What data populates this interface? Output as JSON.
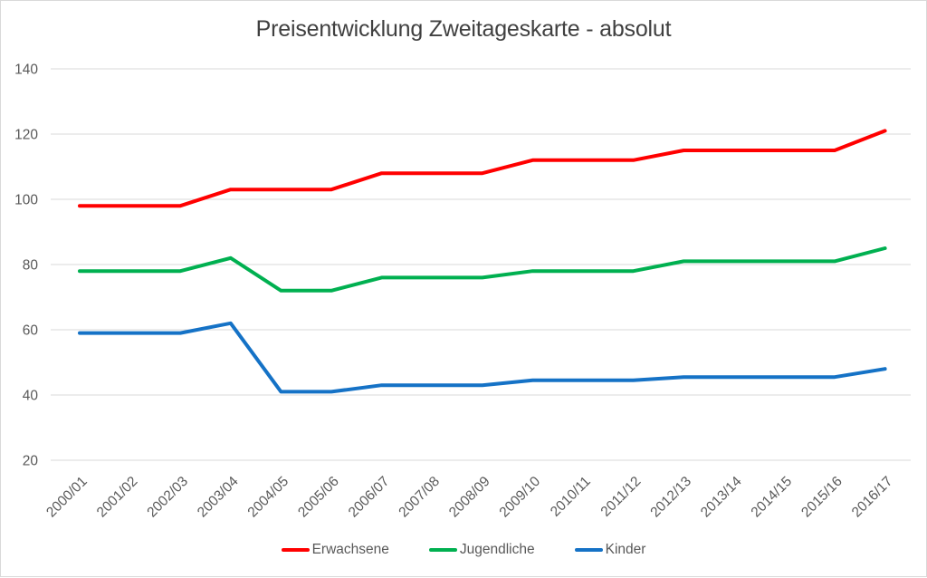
{
  "chart_data": {
    "type": "line",
    "title": "Preisentwicklung Zweitageskarte - absolut",
    "categories": [
      "2000/01",
      "2001/02",
      "2002/03",
      "2003/04",
      "2004/05",
      "2005/06",
      "2006/07",
      "2007/08",
      "2008/09",
      "2009/10",
      "2010/11",
      "2011/12",
      "2012/13",
      "2013/14",
      "2014/15",
      "2015/16",
      "2016/17"
    ],
    "series": [
      {
        "name": "Erwachsene",
        "color": "#ff0000",
        "values": [
          98,
          98,
          98,
          103,
          103,
          103,
          108,
          108,
          108,
          112,
          112,
          112,
          115,
          115,
          115,
          115,
          121
        ]
      },
      {
        "name": "Jugendliche",
        "color": "#00b050",
        "values": [
          78,
          78,
          78,
          82,
          72,
          72,
          76,
          76,
          76,
          78,
          78,
          78,
          81,
          81,
          81,
          81,
          85
        ]
      },
      {
        "name": "Kinder",
        "color": "#1572c6",
        "values": [
          59,
          59,
          59,
          62,
          41,
          41,
          43,
          43,
          43,
          44.5,
          44.5,
          44.5,
          45.5,
          45.5,
          45.5,
          45.5,
          48
        ]
      }
    ],
    "xlabel": "",
    "ylabel": "",
    "ylim": [
      20,
      140
    ],
    "y_ticks": [
      140,
      120,
      100,
      80,
      60,
      40,
      20
    ],
    "grid": true,
    "legend_position": "bottom"
  },
  "colors": {
    "grid_line": "#d9d9d9",
    "axis_text": "#595959",
    "title_text": "#404040",
    "chart_border": "#d9d9d9",
    "background": "#ffffff"
  }
}
